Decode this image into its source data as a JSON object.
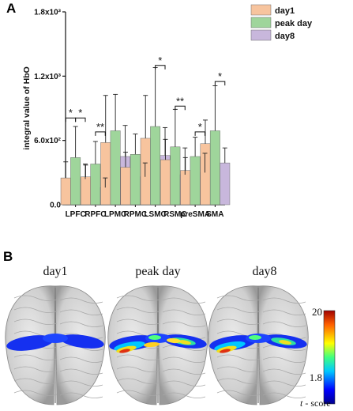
{
  "panel_a_label": "A",
  "panel_b_label": "B",
  "chart_data": {
    "type": "bar",
    "ylabel": "integral value of HbO",
    "ylim": [
      0,
      1800
    ],
    "yticks": [
      {
        "value": 0,
        "label": "0.0"
      },
      {
        "value": 600,
        "label": "6.0x10²"
      },
      {
        "value": 1200,
        "label": "1.2x10³"
      },
      {
        "value": 1800,
        "label": "1.8x10³"
      }
    ],
    "categories": [
      "LPFC",
      "RPFC",
      "LPMC",
      "RPMC",
      "LSMC",
      "RSMC",
      "preSMA",
      "SMA"
    ],
    "series": [
      {
        "name": "day1",
        "color": "#f7c49e",
        "values": [
          250,
          260,
          580,
          350,
          620,
          420,
          320,
          570
        ],
        "errors": [
          150,
          110,
          440,
          140,
          400,
          190,
          120,
          220
        ]
      },
      {
        "name": "peak day",
        "color": "#9fd59b",
        "values": [
          440,
          380,
          690,
          470,
          730,
          540,
          450,
          690
        ],
        "errors": [
          290,
          210,
          340,
          190,
          550,
          350,
          180,
          420
        ]
      },
      {
        "name": "day8",
        "color": "#c8b7dc",
        "values": [
          240,
          160,
          450,
          260,
          460,
          280,
          300,
          390
        ],
        "errors": [
          140,
          90,
          290,
          130,
          260,
          250,
          180,
          140
        ]
      }
    ],
    "legend_position": "top-right",
    "significance": [
      {
        "category": 0,
        "from": 0,
        "to": 1,
        "label": "*",
        "level": 810
      },
      {
        "category": 0,
        "from": 1,
        "to": 2,
        "label": "*",
        "level": 810
      },
      {
        "category": 1,
        "from": 1,
        "to": 2,
        "label": "**",
        "level": 680
      },
      {
        "category": 4,
        "from": 1,
        "to": 2,
        "label": "*",
        "level": 1300
      },
      {
        "category": 5,
        "from": 1,
        "to": 2,
        "label": "**",
        "level": 920
      },
      {
        "category": 6,
        "from": 1,
        "to": 2,
        "label": "*",
        "level": 680
      },
      {
        "category": 7,
        "from": 1,
        "to": 2,
        "label": "*",
        "level": 1150
      }
    ]
  },
  "brain_maps": {
    "titles": [
      "day1",
      "peak day",
      "day8"
    ],
    "colorbar": {
      "max_label": "20",
      "min_label": "1.8",
      "unit_label": "t",
      "unit_suffix": " - score"
    }
  }
}
